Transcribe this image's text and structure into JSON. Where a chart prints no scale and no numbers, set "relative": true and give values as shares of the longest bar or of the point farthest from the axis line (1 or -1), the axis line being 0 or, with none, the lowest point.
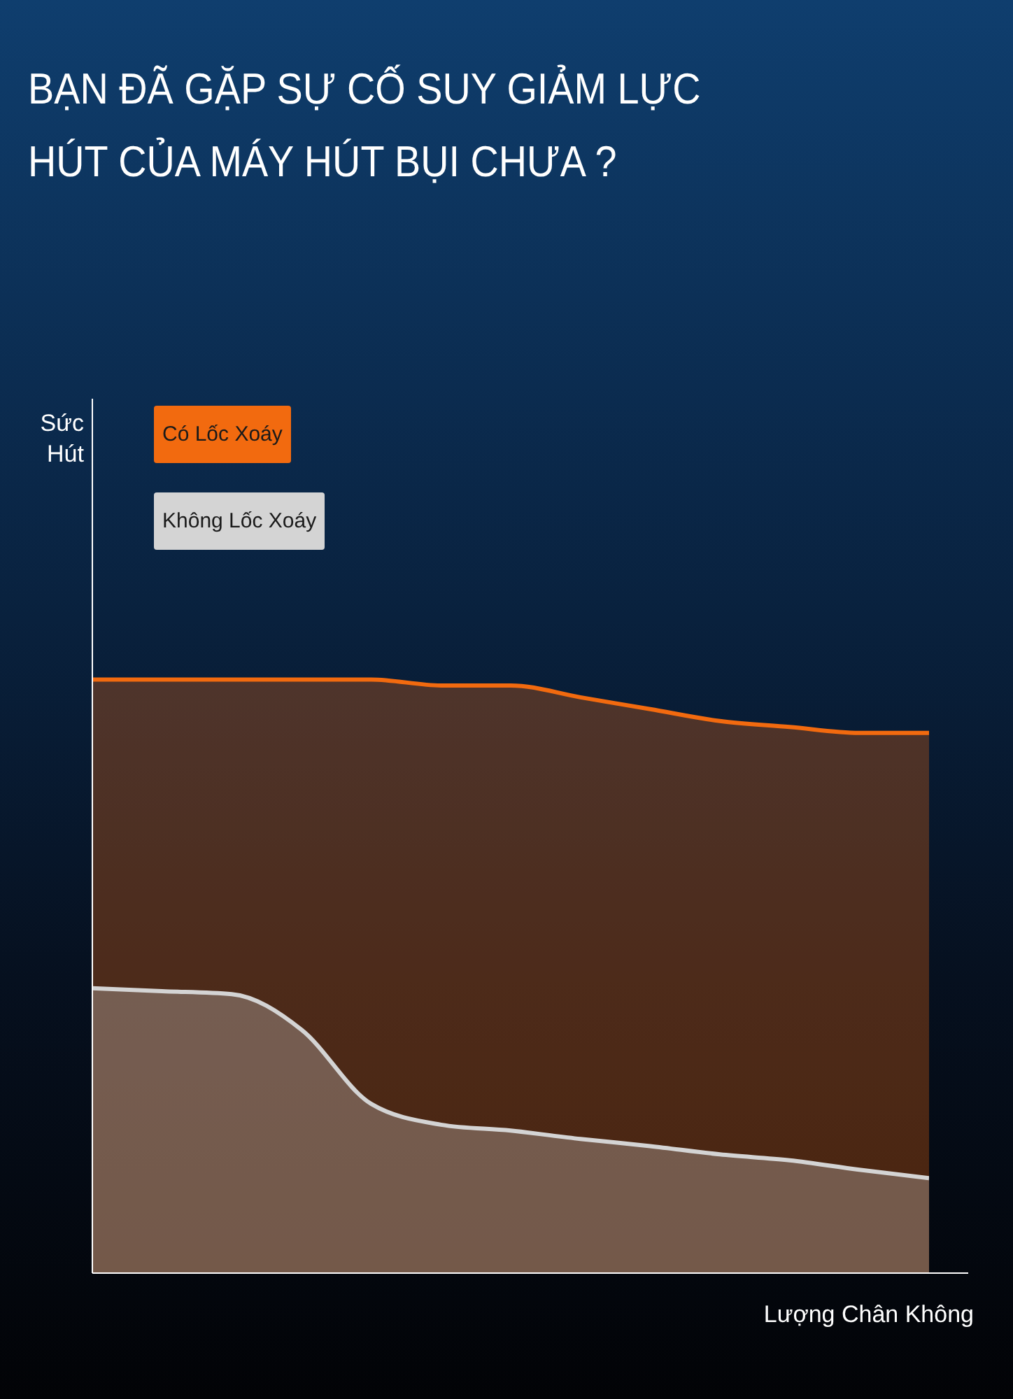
{
  "chart_data": {
    "type": "area",
    "title": "BẠN ĐÃ GẶP SỰ CỐ SUY GIẢM LỰC HÚT CỦA MÁY HÚT BỤI CHƯA ?",
    "xlabel": "Lượng Chân Không",
    "annotations": [
      "Sức Hút"
    ],
    "relative": true,
    "legend": "top left",
    "categories": [
      null,
      null,
      null,
      null,
      null,
      null,
      null,
      null,
      null,
      null,
      null,
      null,
      null
    ],
    "series": [
      {
        "name": "Có Lốc Xoáy",
        "color": "#f26a0f",
        "values": [
          1,
          1,
          1,
          1,
          1,
          0.99,
          0.99,
          0.97,
          0.95,
          0.93,
          0.92,
          0.91,
          0.91
        ]
      },
      {
        "name": "Không Lốc Xoáy",
        "color": "#d4d4d4",
        "values": [
          0.48,
          0.475,
          0.47,
          0.41,
          0.285,
          0.25,
          0.24,
          0.226,
          0.214,
          0.2,
          0.19,
          0.174,
          0.16
        ]
      }
    ]
  }
}
